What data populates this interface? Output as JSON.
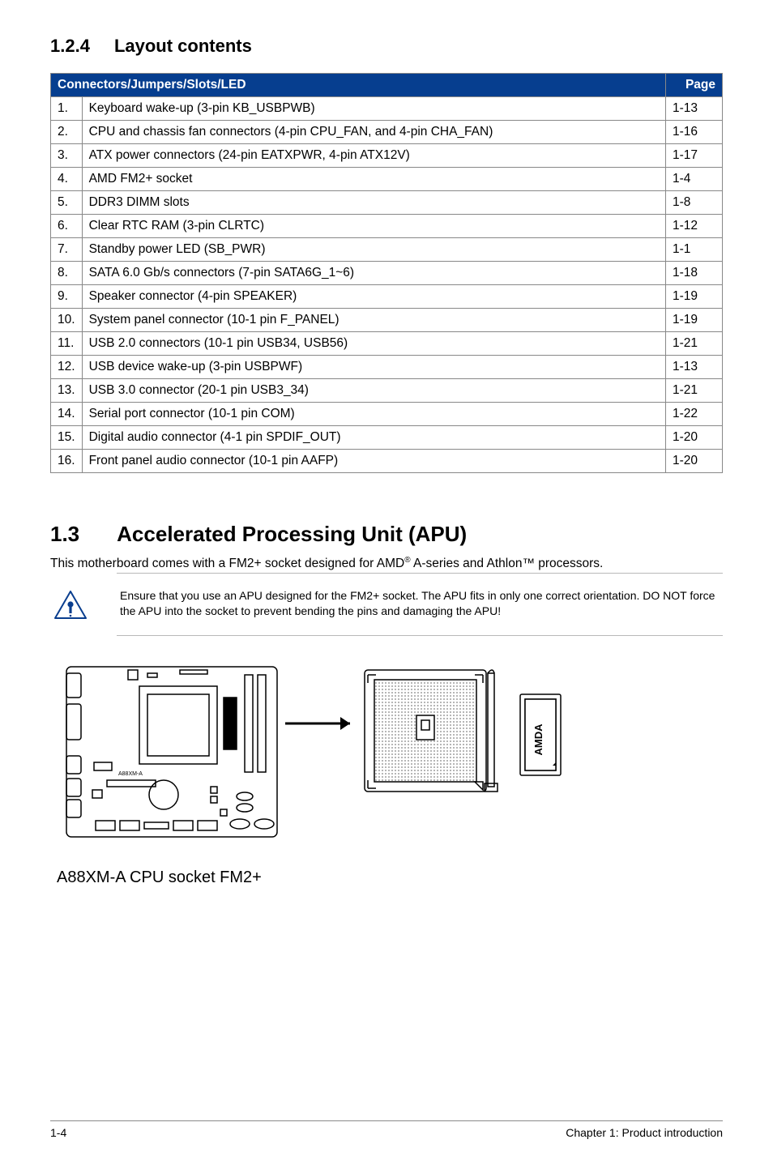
{
  "section124": {
    "num": "1.2.4",
    "title": "Layout contents"
  },
  "table": {
    "header_left": "Connectors/Jumpers/Slots/LED",
    "header_right": "Page",
    "rows": [
      {
        "idx": "1.",
        "desc": "Keyboard wake-up (3-pin KB_USBPWB)",
        "page": "1-13"
      },
      {
        "idx": "2.",
        "desc": "CPU and chassis fan connectors (4-pin CPU_FAN, and 4-pin CHA_FAN)",
        "page": "1-16"
      },
      {
        "idx": "3.",
        "desc": "ATX power connectors (24-pin EATXPWR, 4-pin ATX12V)",
        "page": "1-17"
      },
      {
        "idx": "4.",
        "desc": "AMD FM2+ socket",
        "page": "1-4"
      },
      {
        "idx": "5.",
        "desc": "DDR3 DIMM slots",
        "page": "1-8"
      },
      {
        "idx": "6.",
        "desc": "Clear RTC RAM (3-pin CLRTC)",
        "page": "1-12"
      },
      {
        "idx": "7.",
        "desc": "Standby power LED (SB_PWR)",
        "page": "1-1"
      },
      {
        "idx": "8.",
        "desc": "SATA 6.0 Gb/s connectors (7-pin SATA6G_1~6)",
        "page": "1-18"
      },
      {
        "idx": "9.",
        "desc": "Speaker connector (4-pin SPEAKER)",
        "page": "1-19"
      },
      {
        "idx": "10.",
        "desc": "System panel connector (10-1 pin F_PANEL)",
        "page": "1-19"
      },
      {
        "idx": "11.",
        "desc": "USB 2.0 connectors (10-1 pin USB34, USB56)",
        "page": "1-21"
      },
      {
        "idx": "12.",
        "desc": "USB device wake-up (3-pin USBPWF)",
        "page": "1-13"
      },
      {
        "idx": "13.",
        "desc": "USB 3.0 connector (20-1 pin USB3_34)",
        "page": "1-21"
      },
      {
        "idx": "14.",
        "desc": "Serial port connector (10-1 pin COM)",
        "page": "1-22"
      },
      {
        "idx": "15.",
        "desc": "Digital audio connector (4-1 pin SPDIF_OUT)",
        "page": "1-20"
      },
      {
        "idx": "16.",
        "desc": "Front panel audio connector (10-1 pin AAFP)",
        "page": "1-20"
      }
    ]
  },
  "section13": {
    "num": "1.3",
    "title": "Accelerated Processing Unit (APU)",
    "intro_pre": "This motherboard comes with a FM2+ socket designed for AMD",
    "intro_sup": "®",
    "intro_post": " A-series and Athlon™ processors.",
    "note": "Ensure that you use an APU designed for the FM2+ socket. The APU fits in only one correct orientation. DO NOT force the APU into the socket to prevent bending the pins and damaging the APU!",
    "caption": "A88XM-A CPU socket FM2+"
  },
  "footer": {
    "left": "1-4",
    "right": "Chapter 1: Product introduction"
  },
  "colors": {
    "header_bg": "#063e8f",
    "header_fg": "#ffffff",
    "border": "#888888",
    "warn_stroke": "#0a3e8e",
    "diagram_stroke": "#000000"
  }
}
